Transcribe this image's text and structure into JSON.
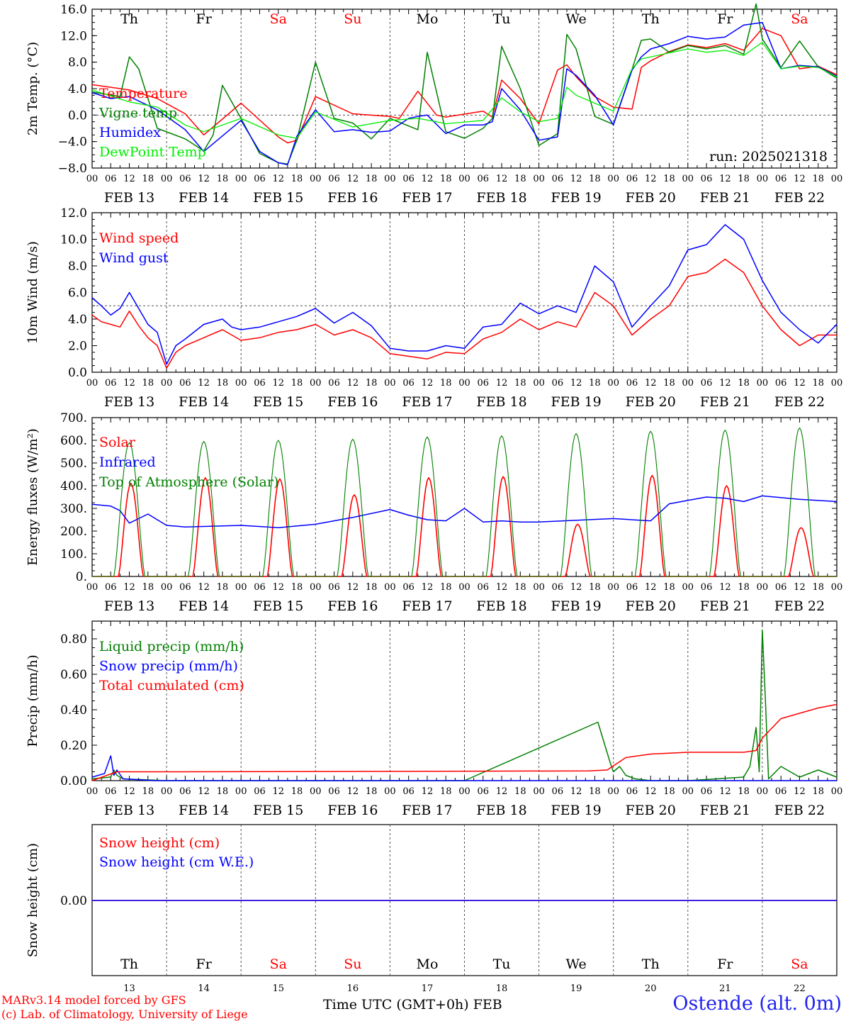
{
  "colors": {
    "red": "#ff0000",
    "green": "#008000",
    "blue": "#0000ff",
    "lime": "#00ee00",
    "grid": "#555555",
    "station": "#2222ee"
  },
  "days": [
    {
      "dow": "Th",
      "date": "FEB 13",
      "num": "13",
      "weekend": false
    },
    {
      "dow": "Fr",
      "date": "FEB 14",
      "num": "14",
      "weekend": false
    },
    {
      "dow": "Sa",
      "date": "FEB 15",
      "num": "15",
      "weekend": true
    },
    {
      "dow": "Su",
      "date": "FEB 16",
      "num": "16",
      "weekend": true
    },
    {
      "dow": "Mo",
      "date": "FEB 17",
      "num": "17",
      "weekend": false
    },
    {
      "dow": "Tu",
      "date": "FEB 18",
      "num": "18",
      "weekend": false
    },
    {
      "dow": "We",
      "date": "FEB 19",
      "num": "19",
      "weekend": false
    },
    {
      "dow": "Th",
      "date": "FEB 20",
      "num": "20",
      "weekend": false
    },
    {
      "dow": "Fr",
      "date": "FEB 21",
      "num": "21",
      "weekend": false
    },
    {
      "dow": "Sa",
      "date": "FEB 22",
      "num": "22",
      "weekend": true
    }
  ],
  "hour_ticks": [
    "00",
    "06",
    "12",
    "18"
  ],
  "last_hour_tick": "00",
  "footer": {
    "credit_line1": "MARv3.14 model forced by GFS",
    "credit_line2": "(c) Lab. of Climatology, University of Liege",
    "x_title": "Time UTC (GMT+0h) FEB",
    "station": "Ostende (alt. 0m)"
  },
  "chart_data": [
    {
      "type": "line",
      "ylabel": "2m Temp. (°C)",
      "ylim": [
        -8,
        16
      ],
      "yticks": [
        16,
        12,
        8,
        4,
        0,
        -4,
        -8
      ],
      "ytick_labels": [
        "16.0",
        "12.0",
        "8.0",
        "4.0",
        "0.0",
        "−4.0",
        "−8.0"
      ],
      "x_unit": "hours since FEB 13 00 UTC",
      "ref_line": 0,
      "run_label": "run: 2025021318",
      "series": [
        {
          "name": "Temperature",
          "color": "#ff0000",
          "x": [
            0,
            12,
            21,
            30,
            36,
            48,
            60,
            63,
            66,
            72,
            84,
            96,
            99,
            105,
            111,
            114,
            126,
            129,
            132,
            138,
            144,
            150,
            153,
            156,
            162,
            168,
            174,
            177,
            180,
            186,
            192,
            198,
            204,
            210,
            216,
            222,
            228,
            234,
            240
          ],
          "y": [
            4.6,
            3.8,
            2.5,
            0.2,
            -3,
            1.8,
            -3.3,
            -4.2,
            -3.8,
            2.8,
            0.2,
            -0.2,
            -0.5,
            3.6,
            0,
            -0.3,
            0.6,
            -0.3,
            5.3,
            2.5,
            -1.3,
            6.8,
            7.6,
            5.8,
            2.8,
            1.2,
            0.9,
            7.2,
            8.2,
            9.6,
            10.6,
            10.2,
            10.8,
            9.8,
            13.1,
            12,
            7.0,
            7.4,
            6.1
          ]
        },
        {
          "name": "Vigne temp",
          "color": "#008000",
          "x": [
            0,
            9,
            12,
            15,
            21,
            30,
            36,
            39,
            42,
            48,
            54,
            60,
            63,
            66,
            72,
            78,
            84,
            90,
            96,
            105,
            108,
            114,
            120,
            126,
            129,
            132,
            138,
            144,
            150,
            153,
            156,
            162,
            168,
            174,
            177,
            180,
            186,
            192,
            198,
            204,
            210,
            214,
            216,
            222,
            228,
            234,
            240
          ],
          "y": [
            3.5,
            2.8,
            8.8,
            7,
            -2,
            -3.6,
            -5.4,
            -3,
            4.5,
            -0.5,
            -5.8,
            -7.2,
            -7.4,
            -3.8,
            8,
            -0.5,
            -1.2,
            -3.6,
            -0.5,
            -2.2,
            9.5,
            -2.5,
            -3.5,
            -2.0,
            -0.5,
            10.4,
            4.0,
            -4.6,
            -2.8,
            12.2,
            10.0,
            -0.2,
            -1.4,
            6.9,
            11.3,
            11.5,
            9.5,
            10.5,
            10.0,
            10.5,
            9.2,
            16.8,
            11.5,
            7.2,
            11.2,
            7.3,
            5.6
          ]
        },
        {
          "name": "Humidex",
          "color": "#0000ff",
          "x": [
            0,
            6,
            12,
            21,
            30,
            36,
            48,
            54,
            60,
            63,
            66,
            72,
            78,
            84,
            90,
            96,
            102,
            105,
            108,
            114,
            120,
            126,
            129,
            132,
            138,
            144,
            150,
            153,
            156,
            162,
            168,
            174,
            177,
            180,
            186,
            192,
            198,
            204,
            210,
            216,
            222,
            228,
            234,
            240
          ],
          "y": [
            3.4,
            2.5,
            2.8,
            0.8,
            -2.2,
            -5.5,
            -0.8,
            -5.5,
            -7.2,
            -7.5,
            -3.2,
            0.8,
            -2.5,
            -2.2,
            -2.6,
            -2.4,
            -0.5,
            -0.2,
            0,
            -2.8,
            -1.5,
            -1.5,
            -1.0,
            4.0,
            0.8,
            -3.8,
            -3.3,
            7.0,
            6.0,
            3.0,
            -1.5,
            6.8,
            8.8,
            10.0,
            10.8,
            11.9,
            11.5,
            11.8,
            13.6,
            14.0,
            7.0,
            7.5,
            7.3,
            5.9
          ]
        },
        {
          "name": "DewPoint Temp",
          "color": "#00ee00",
          "x": [
            0,
            12,
            21,
            30,
            36,
            48,
            60,
            66,
            72,
            84,
            96,
            105,
            111,
            114,
            126,
            132,
            138,
            144,
            150,
            153,
            156,
            162,
            168,
            174,
            177,
            180,
            186,
            192,
            198,
            204,
            210,
            216,
            222,
            228,
            234,
            240
          ],
          "y": [
            3.8,
            2.0,
            1.2,
            -1.5,
            -2.5,
            -0.5,
            -3.0,
            -3.5,
            0.5,
            -1.8,
            -0.8,
            -0.5,
            -1.0,
            -1.3,
            -0.8,
            2.6,
            0.5,
            -1.0,
            -0.5,
            4.2,
            3.0,
            1.8,
            0.6,
            7.0,
            8.5,
            8.8,
            9.4,
            10.0,
            9.5,
            9.8,
            9.0,
            11.0,
            7.0,
            7.4,
            7.2,
            5.8
          ]
        }
      ]
    },
    {
      "type": "line",
      "ylabel": "10m Wind (m/s)",
      "ylim": [
        0,
        12
      ],
      "yticks": [
        12,
        10,
        8,
        6,
        4,
        2,
        0
      ],
      "ytick_labels": [
        "12.0",
        "10.0",
        "8.0",
        "6.0",
        "4.0",
        "2.0",
        "0.0"
      ],
      "ref_line": 5,
      "series": [
        {
          "name": "Wind speed",
          "color": "#ff0000",
          "x": [
            0,
            3,
            6,
            9,
            12,
            15,
            18,
            21,
            24,
            27,
            30,
            36,
            42,
            45,
            48,
            54,
            60,
            66,
            72,
            78,
            84,
            90,
            96,
            102,
            108,
            114,
            120,
            126,
            132,
            138,
            144,
            150,
            156,
            162,
            168,
            174,
            180,
            186,
            192,
            198,
            204,
            210,
            216,
            222,
            228,
            234,
            240
          ],
          "y": [
            4.3,
            3.8,
            3.6,
            3.4,
            4.6,
            3.5,
            2.6,
            2.0,
            0.3,
            1.5,
            2.0,
            2.6,
            3.2,
            2.8,
            2.4,
            2.6,
            3.0,
            3.2,
            3.6,
            2.8,
            3.2,
            2.6,
            1.4,
            1.2,
            1.0,
            1.5,
            1.4,
            2.5,
            3.0,
            4.0,
            3.2,
            3.8,
            3.4,
            6.0,
            5.0,
            2.8,
            4.0,
            5.0,
            7.2,
            7.5,
            8.5,
            7.5,
            5.0,
            3.2,
            2.0,
            2.8,
            2.8
          ]
        },
        {
          "name": "Wind gust",
          "color": "#0000ff",
          "x": [
            0,
            3,
            6,
            9,
            12,
            15,
            18,
            21,
            24,
            27,
            30,
            36,
            42,
            45,
            48,
            54,
            60,
            66,
            72,
            78,
            84,
            90,
            96,
            102,
            108,
            114,
            120,
            126,
            132,
            138,
            144,
            150,
            156,
            162,
            168,
            174,
            180,
            186,
            192,
            198,
            204,
            210,
            216,
            222,
            228,
            234,
            240
          ],
          "y": [
            5.6,
            5.0,
            4.3,
            4.8,
            6.0,
            4.8,
            3.6,
            3.0,
            0.6,
            2.0,
            2.5,
            3.6,
            4.0,
            3.4,
            3.2,
            3.4,
            3.8,
            4.2,
            4.8,
            3.7,
            4.5,
            3.5,
            1.8,
            1.6,
            1.6,
            2.0,
            1.8,
            3.4,
            3.6,
            5.2,
            4.4,
            5.0,
            4.5,
            8.0,
            6.8,
            3.4,
            5.0,
            6.5,
            9.2,
            9.6,
            11.1,
            10.0,
            6.9,
            4.5,
            3.2,
            2.2,
            3.6
          ]
        }
      ]
    },
    {
      "type": "line",
      "ylabel": "Energy fluxes (W/m²)",
      "ylim": [
        0,
        700
      ],
      "yticks": [
        700,
        600,
        500,
        400,
        300,
        200,
        100,
        0
      ],
      "ytick_labels": [
        "700.",
        "600.",
        "500.",
        "400.",
        "300.",
        "200.",
        "100.",
        "0."
      ],
      "series": [
        {
          "name": "Solar",
          "color": "#ff0000",
          "peaks": [
            410,
            435,
            430,
            360,
            435,
            440,
            230,
            445,
            400,
            215
          ]
        },
        {
          "name": "Infrared",
          "color": "#0000ff",
          "x": [
            0,
            6,
            9,
            12,
            18,
            24,
            30,
            48,
            60,
            72,
            84,
            96,
            102,
            108,
            114,
            120,
            126,
            132,
            138,
            144,
            168,
            180,
            186,
            192,
            198,
            204,
            210,
            216,
            228,
            240
          ],
          "y": [
            318,
            310,
            290,
            235,
            275,
            225,
            218,
            225,
            215,
            230,
            260,
            295,
            270,
            250,
            245,
            300,
            240,
            245,
            240,
            240,
            255,
            245,
            320,
            335,
            350,
            345,
            330,
            355,
            340,
            330
          ]
        },
        {
          "name": "Top of Atmosphere (Solar)",
          "color": "#008000",
          "peaks": [
            590,
            595,
            600,
            605,
            615,
            620,
            630,
            640,
            645,
            655
          ]
        }
      ]
    },
    {
      "type": "line",
      "ylabel": "Precip (mm/h)",
      "ylim": [
        0,
        0.9
      ],
      "yticks": [
        0.8,
        0.6,
        0.4,
        0.2,
        0
      ],
      "ytick_labels": [
        "0.80",
        "0.60",
        "0.40",
        "0.20",
        "0.00"
      ],
      "series": [
        {
          "name": "Liquid precip (mm/h)",
          "color": "#008000",
          "x": [
            0,
            6,
            7,
            8,
            10,
            24,
            120,
            163,
            167,
            168,
            170,
            172,
            175,
            180,
            192,
            210,
            212,
            214,
            215,
            216,
            217,
            218,
            222,
            228,
            234,
            240
          ],
          "y": [
            0.01,
            0.02,
            0.06,
            0.03,
            0.01,
            0.0,
            0.0,
            0.33,
            0.1,
            0.05,
            0.08,
            0.03,
            0.01,
            0.0,
            0.0,
            0.02,
            0.08,
            0.3,
            0.05,
            0.85,
            0.45,
            0.01,
            0.08,
            0.02,
            0.06,
            0.02
          ]
        },
        {
          "name": "Snow precip (mm/h)",
          "color": "#0000ff",
          "x": [
            0,
            4,
            6,
            7,
            8,
            10,
            20,
            240
          ],
          "y": [
            0.02,
            0.04,
            0.14,
            0.03,
            0.06,
            0.01,
            0.0,
            0.0
          ]
        },
        {
          "name": "Total cumulated (cm)",
          "color": "#ff0000",
          "x": [
            0,
            8,
            24,
            160,
            166,
            172,
            180,
            192,
            210,
            214,
            216,
            222,
            228,
            234,
            240
          ],
          "y": [
            0.0,
            0.05,
            0.05,
            0.055,
            0.06,
            0.13,
            0.15,
            0.16,
            0.16,
            0.17,
            0.24,
            0.35,
            0.38,
            0.41,
            0.43
          ]
        }
      ]
    },
    {
      "type": "line",
      "ylabel": "Snow height (cm)",
      "yticks": [
        0
      ],
      "ytick_labels": [
        "0.00"
      ],
      "series": [
        {
          "name": "Snow height (cm)",
          "color": "#ff0000",
          "x": [
            0,
            240
          ],
          "y": [
            0,
            0
          ]
        },
        {
          "name": "Snow height (cm W.E.)",
          "color": "#0000ff",
          "x": [
            0,
            240
          ],
          "y": [
            0,
            0
          ]
        }
      ]
    }
  ]
}
